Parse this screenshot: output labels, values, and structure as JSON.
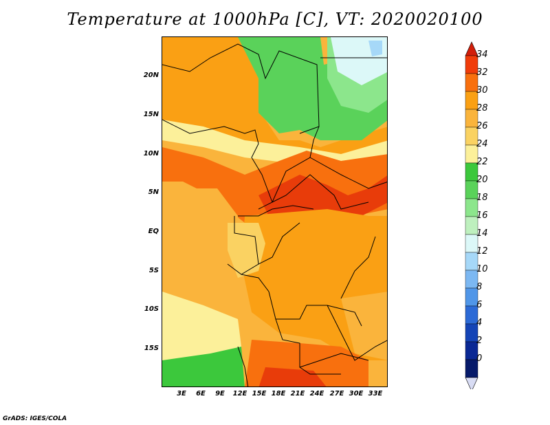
{
  "title": "Temperature at 1000hPa [C], VT: 2020020100",
  "credit": "GrADS: IGES/COLA",
  "lat_labels": [
    "20N",
    "15N",
    "10N",
    "5N",
    "EQ",
    "5S",
    "10S",
    "15S"
  ],
  "lon_labels": [
    "3E",
    "6E",
    "9E",
    "12E",
    "15E",
    "18E",
    "21E",
    "24E",
    "27E",
    "30E",
    "33E"
  ],
  "colorbar": {
    "labels": [
      "34",
      "32",
      "30",
      "28",
      "26",
      "24",
      "22",
      "20",
      "18",
      "16",
      "14",
      "12",
      "10",
      "8",
      "6",
      "4",
      "2",
      "0"
    ],
    "colors": [
      "#f03c0a",
      "#f8700e",
      "#faa014",
      "#fab43c",
      "#fad262",
      "#fcf09a",
      "#3cc83c",
      "#5ad25a",
      "#8ce68c",
      "#bef0be",
      "#dcf8f8",
      "#a6d8f8",
      "#7cb8f2",
      "#5096e8",
      "#2c6ad6",
      "#1444b6",
      "#0a2894",
      "#061a6a"
    ],
    "top_arrow_color": "#d21e0a",
    "bottom_arrow_color": "#d8dcf4"
  },
  "field_colors": {
    "very_hot": "#e83c0a",
    "hot": "#f8700e",
    "warm": "#faa014",
    "mild": "#fab43c",
    "cool": "#fad262",
    "pale": "#fcf09a",
    "green_dark": "#3cc83c",
    "green": "#5ad25a",
    "green_light": "#8ce68c",
    "green_pale": "#bef0be",
    "cyan_pale": "#dcf8f8",
    "blue_light": "#a6d8f8"
  }
}
